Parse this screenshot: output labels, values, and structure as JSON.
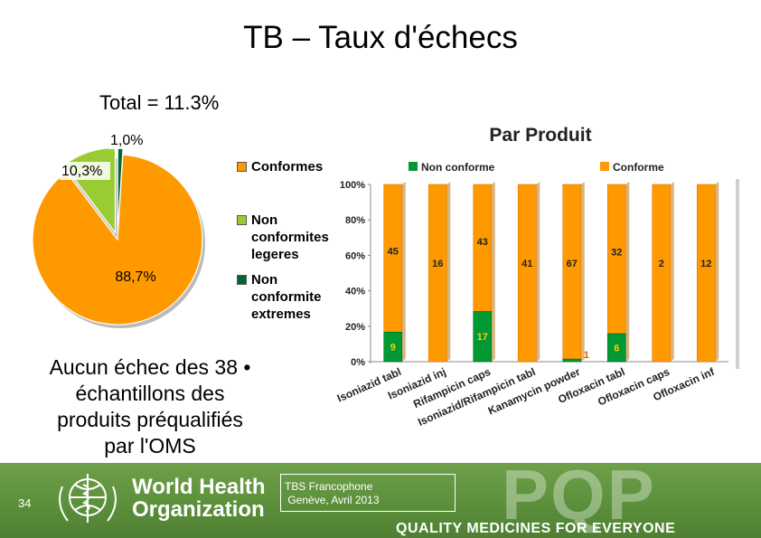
{
  "slide": {
    "title": "TB – Taux d'échecs",
    "bullet": "Aucun échec des 38 •\néchantillons des\nproduits préqualifiés\npar l'OMS",
    "page_number": "34"
  },
  "colors": {
    "orange": "#FF9900",
    "light_green": "#99CC33",
    "dark_green": "#006633",
    "bar_green": "#009933",
    "footer_green": "#5a8e3a"
  },
  "footer": {
    "org_line1": "World Health",
    "org_line2": "Organization",
    "event_line1": "TBS Francophone",
    "event_line2": " Genève, Avril 2013",
    "logo_text": "PQP",
    "tagline": "QUALITY MEDICINES FOR EVERYONE",
    "icon": "who-emblem-icon"
  },
  "chart_data": [
    {
      "type": "pie",
      "title": "Total = 11.3%",
      "slices": [
        {
          "label": "Conformes",
          "value": 88.7,
          "display": "88,7%",
          "color": "#FF9900"
        },
        {
          "label": "Non conformites legeres",
          "value": 10.3,
          "display": "10,3%",
          "color": "#99CC33"
        },
        {
          "label": "Non conformite extremes",
          "value": 1.0,
          "display": "1,0%",
          "color": "#006633"
        }
      ],
      "legend": [
        "Conformes",
        "Non conformites legeres",
        "Non conformite extremes"
      ],
      "legend_lines": [
        [
          "Conformes"
        ],
        [
          "Non",
          "conformites",
          "legeres"
        ],
        [
          "Non",
          "conformite",
          "extremes"
        ]
      ],
      "legend_position": "right"
    },
    {
      "type": "bar",
      "stacked": true,
      "percent": true,
      "title": "Par Produit",
      "categories": [
        "Isoniazid tabl",
        "Isoniazid inj",
        "Rifampicin caps",
        "Isoniazid/Rifampicin tabl",
        "Kanamycin powder",
        "Ofloxacin tabl",
        "Ofloxacin caps",
        "Ofloxacin inf"
      ],
      "series": [
        {
          "name": "Non conforme",
          "color": "#009933",
          "values": [
            9,
            0,
            17,
            0,
            1,
            6,
            0,
            0
          ],
          "labels": [
            "9",
            "",
            "17",
            "",
            "1",
            "6",
            "",
            ""
          ]
        },
        {
          "name": "Conforme",
          "color": "#FF9900",
          "values": [
            45,
            16,
            43,
            41,
            67,
            32,
            2,
            12
          ],
          "labels": [
            "45",
            "16",
            "43",
            "41",
            "67",
            "32",
            "2",
            "12"
          ]
        }
      ],
      "yticks": [
        "0%",
        "20%",
        "40%",
        "60%",
        "80%",
        "100%"
      ],
      "ylim": [
        0,
        100
      ],
      "grid": false,
      "legend_position": "top"
    }
  ]
}
